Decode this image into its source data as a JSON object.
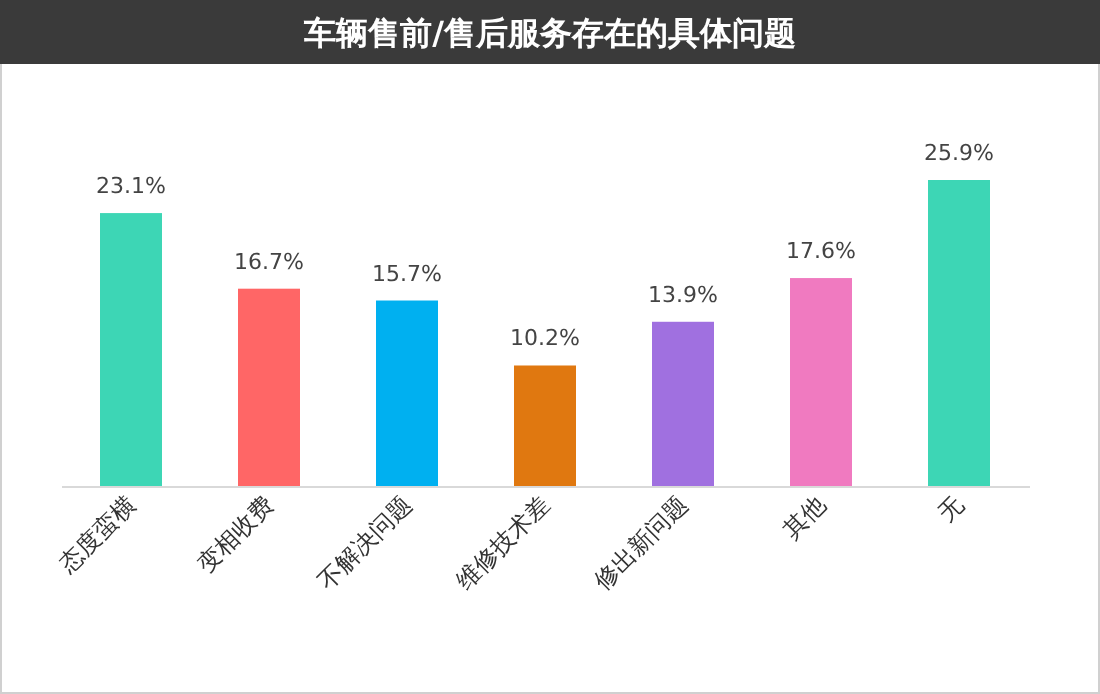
{
  "chart_data": {
    "type": "bar",
    "title": "车辆售前/售后服务存在的具体问题",
    "categories": [
      "态度蛮横",
      "变相收费",
      "不解决问题",
      "维修技术差",
      "修出新问题",
      "其他",
      "无"
    ],
    "values": [
      23.1,
      16.7,
      15.7,
      10.2,
      13.9,
      17.6,
      25.9
    ],
    "colors": [
      "#3dd6b5",
      "#ff6666",
      "#00b0f0",
      "#e07810",
      "#a070e0",
      "#f07ac0",
      "#3dd6b5"
    ],
    "value_labels": [
      "23.1%",
      "16.7%",
      "15.7%",
      "10.2%",
      "13.9%",
      "17.6%",
      "25.9%"
    ]
  }
}
